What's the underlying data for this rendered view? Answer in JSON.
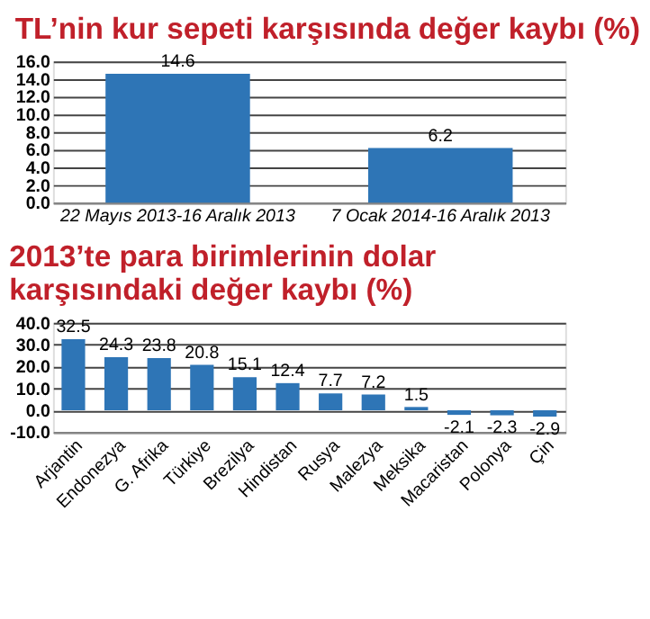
{
  "chart_data": [
    {
      "type": "bar",
      "title": "TL’nin kur sepeti karşısında değer kaybı (%)",
      "categories": [
        "22 Mayıs 2013-16 Aralık 2013",
        "7 Ocak 2014-16 Aralık 2013"
      ],
      "values": [
        14.6,
        6.2
      ],
      "color": "#2e75b6",
      "ylim": [
        0,
        16
      ],
      "yticks": [
        {
          "value": 0,
          "label": "0.0"
        },
        {
          "value": 2,
          "label": "2.0"
        },
        {
          "value": 4,
          "label": "4.0"
        },
        {
          "value": 6,
          "label": "6.0"
        },
        {
          "value": 8,
          "label": "8.0"
        },
        {
          "value": 10,
          "label": "10.0"
        },
        {
          "value": 12,
          "label": "12.0"
        },
        {
          "value": 14,
          "label": "14.0"
        },
        {
          "value": 16,
          "label": "16.0"
        }
      ],
      "grid": "y",
      "data_labels": true
    },
    {
      "type": "bar",
      "title": "2013’te para birimlerinin dolar\nkarşısındaki değer kaybı (%)",
      "categories": [
        "Arjantin",
        "Endonezya",
        "G. Afrika",
        "Türkiye",
        "Brezilya",
        "Hindistan",
        "Rusya",
        "Malezya",
        "Meksika",
        "Macaristan",
        "Polonya",
        "Çin"
      ],
      "values": [
        32.5,
        24.3,
        23.8,
        20.8,
        15.1,
        12.4,
        7.7,
        7.2,
        1.5,
        -2.1,
        -2.3,
        -2.9
      ],
      "color": "#2e75b6",
      "ylim": [
        -10,
        40
      ],
      "yticks": [
        {
          "value": -10,
          "label": "-10.0"
        },
        {
          "value": 0,
          "label": "0.0"
        },
        {
          "value": 10,
          "label": "10.0"
        },
        {
          "value": 20,
          "label": "20.0"
        },
        {
          "value": 30,
          "label": "30.0"
        },
        {
          "value": 40,
          "label": "40.0"
        }
      ],
      "grid": "y",
      "data_labels": true
    }
  ]
}
